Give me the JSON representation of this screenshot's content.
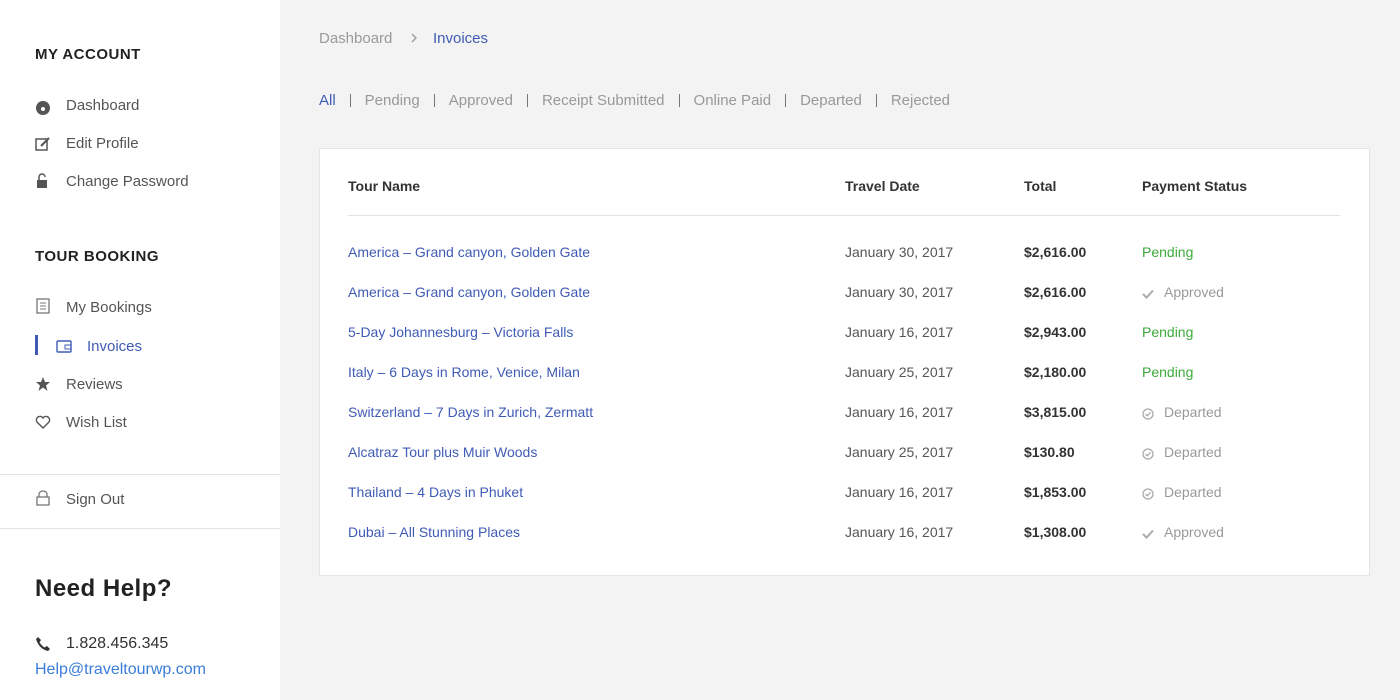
{
  "sidebar": {
    "my_account": {
      "title": "MY ACCOUNT",
      "items": [
        "Dashboard",
        "Edit Profile",
        "Change Password"
      ]
    },
    "tour_booking": {
      "title": "TOUR BOOKING",
      "items": [
        "My Bookings",
        "Invoices",
        "Reviews",
        "Wish List"
      ]
    },
    "sign_out": "Sign Out"
  },
  "help": {
    "title": "Need Help?",
    "phone": "1.828.456.345",
    "email": "Help@traveltourwp.com"
  },
  "breadcrumb": [
    "Dashboard",
    "Invoices"
  ],
  "filters": [
    "All",
    "Pending",
    "Approved",
    "Receipt Submitted",
    "Online Paid",
    "Departed",
    "Rejected"
  ],
  "table": {
    "headers": [
      "Tour Name",
      "Travel Date",
      "Total",
      "Payment Status"
    ],
    "rows": [
      [
        "America – Grand canyon, Golden Gate",
        "January 30, 2017",
        "$2,616.00",
        "Pending"
      ],
      [
        "America – Grand canyon, Golden Gate",
        "January 30, 2017",
        "$2,616.00",
        "Approved"
      ],
      [
        "5-Day Johannesburg – Victoria Falls",
        "January 16, 2017",
        "$2,943.00",
        "Pending"
      ],
      [
        "Italy – 6 Days in Rome, Venice, Milan",
        "January 25, 2017",
        "$2,180.00",
        "Pending"
      ],
      [
        "Switzerland – 7 Days in Zurich, Zermatt",
        "January 16, 2017",
        "$3,815.00",
        "Departed"
      ],
      [
        "Alcatraz Tour plus Muir Woods",
        "January 25, 2017",
        "$130.80",
        "Departed"
      ],
      [
        "Thailand – 4 Days in Phuket",
        "January 16, 2017",
        "$1,853.00",
        "Departed"
      ],
      [
        "Dubai – All Stunning Places",
        "January 16, 2017",
        "$1,308.00",
        "Approved"
      ]
    ]
  }
}
